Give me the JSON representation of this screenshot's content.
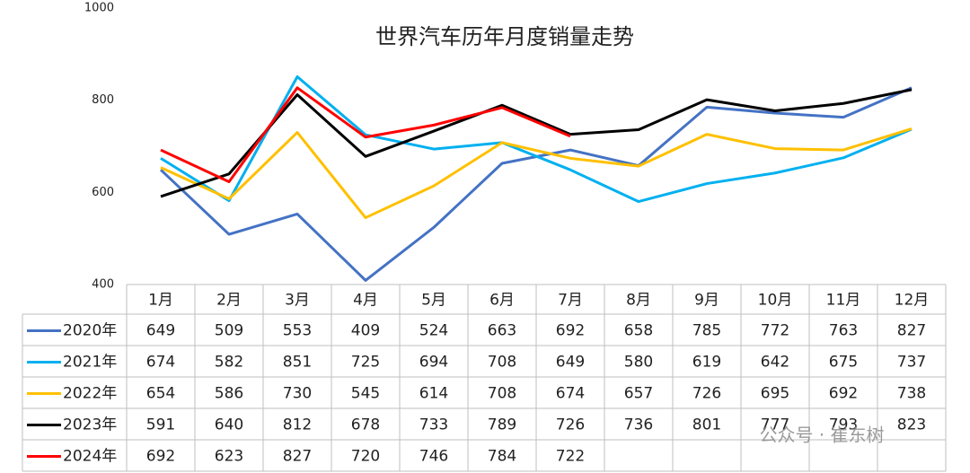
{
  "chart_data": {
    "type": "line",
    "title": "世界汽车历年月度销量走势",
    "categories": [
      "1月",
      "2月",
      "3月",
      "4月",
      "5月",
      "6月",
      "7月",
      "8月",
      "9月",
      "10月",
      "11月",
      "12月"
    ],
    "series": [
      {
        "name": "2020年",
        "color": "#4472c4",
        "values": [
          649,
          509,
          553,
          409,
          524,
          663,
          692,
          658,
          785,
          772,
          763,
          827
        ]
      },
      {
        "name": "2021年",
        "color": "#00b0f0",
        "values": [
          674,
          582,
          851,
          725,
          694,
          708,
          649,
          580,
          619,
          642,
          675,
          737
        ]
      },
      {
        "name": "2022年",
        "color": "#ffc000",
        "values": [
          654,
          586,
          730,
          545,
          614,
          708,
          674,
          657,
          726,
          695,
          692,
          738
        ]
      },
      {
        "name": "2023年",
        "color": "#000000",
        "values": [
          591,
          640,
          812,
          678,
          733,
          789,
          726,
          736,
          801,
          777,
          793,
          823
        ]
      },
      {
        "name": "2024年",
        "color": "#ff0000",
        "values": [
          692,
          623,
          827,
          720,
          746,
          784,
          722,
          null,
          null,
          null,
          null,
          null
        ]
      }
    ],
    "ylim": [
      400,
      1000
    ],
    "yticks": [
      400,
      600,
      800,
      1000
    ],
    "grid": false,
    "watermark": "公众号 · 崔东树"
  }
}
